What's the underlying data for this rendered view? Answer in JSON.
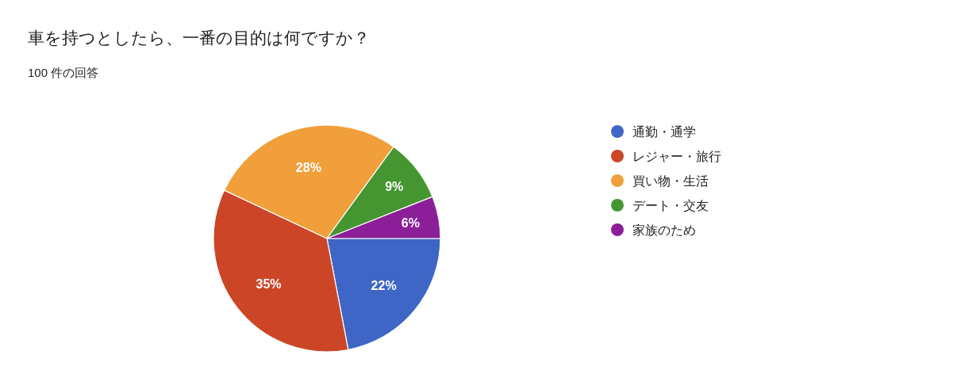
{
  "chart_data": {
    "type": "pie",
    "title": "車を持つとしたら、一番の目的は何ですか？",
    "subtitle": "100 件の回答",
    "categories": [
      "通勤・通学",
      "レジャー・旅行",
      "買い物・生活",
      "デート・交友",
      "家族のため"
    ],
    "values": [
      22,
      35,
      28,
      9,
      6
    ],
    "colors": [
      "#3f66c6",
      "#cc4527",
      "#f09f3a",
      "#459631",
      "#8c1f99"
    ],
    "value_labels": [
      "22%",
      "35%",
      "28%",
      "9%",
      "6%"
    ],
    "legend": "right"
  }
}
